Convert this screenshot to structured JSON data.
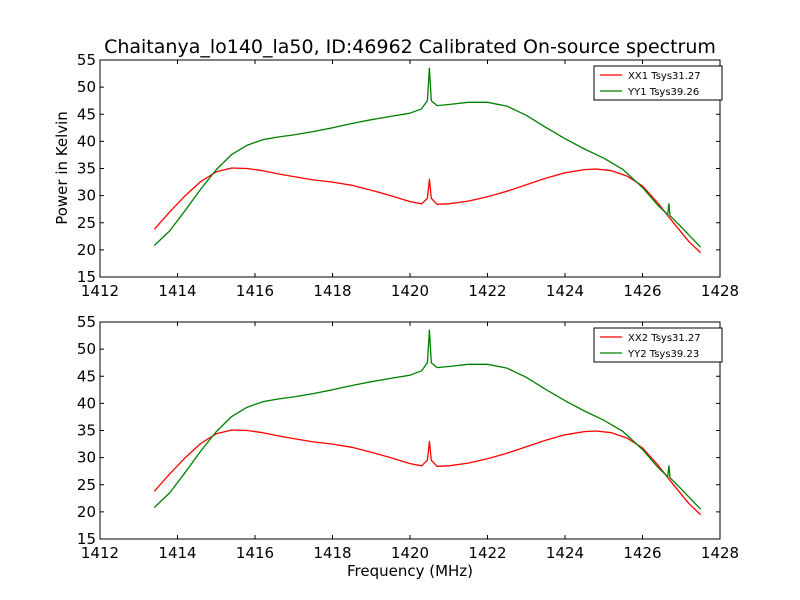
{
  "title": "Chaitanya_lo140_la50, ID:46962 Calibrated On-source spectrum",
  "xlabel": "Frequency (MHz)",
  "ylabel": "Power in Kelvin",
  "chart_data": [
    {
      "type": "line",
      "title": "Chaitanya_lo140_la50, ID:46962 Calibrated On-source spectrum",
      "xlabel": "",
      "ylabel": "Power in Kelvin",
      "xlim": [
        1412,
        1428
      ],
      "ylim": [
        15,
        55
      ],
      "xticks": [
        "1412",
        "1414",
        "1416",
        "1418",
        "1420",
        "1422",
        "1424",
        "1426",
        "1428"
      ],
      "yticks": [
        "15",
        "20",
        "25",
        "30",
        "35",
        "40",
        "45",
        "50",
        "55"
      ],
      "grid": false,
      "legend_position": "top-right",
      "series": [
        {
          "name": "XX1 Tsys31.27",
          "color": "#ff0000",
          "x": [
            1413.4,
            1413.8,
            1414.2,
            1414.6,
            1415.0,
            1415.4,
            1415.8,
            1416.2,
            1416.6,
            1417.0,
            1417.5,
            1418.0,
            1418.5,
            1419.0,
            1419.5,
            1420.0,
            1420.3,
            1420.45,
            1420.5,
            1420.55,
            1420.7,
            1421.0,
            1421.5,
            1422.0,
            1422.5,
            1423.0,
            1423.5,
            1424.0,
            1424.5,
            1424.8,
            1425.2,
            1425.6,
            1426.0,
            1426.4,
            1426.8,
            1427.2,
            1427.5
          ],
          "y": [
            23.8,
            27.0,
            30.0,
            32.6,
            34.4,
            35.1,
            35.0,
            34.6,
            34.0,
            33.5,
            32.9,
            32.5,
            31.9,
            31.0,
            30.0,
            28.9,
            28.5,
            29.5,
            33.0,
            29.5,
            28.4,
            28.5,
            29.0,
            29.8,
            30.8,
            32.0,
            33.2,
            34.2,
            34.8,
            34.9,
            34.6,
            33.6,
            31.8,
            28.6,
            25.0,
            21.5,
            19.5
          ]
        },
        {
          "name": "YY1 Tsys39.26",
          "color": "#008000",
          "x": [
            1413.4,
            1413.8,
            1414.2,
            1414.6,
            1415.0,
            1415.4,
            1415.8,
            1416.2,
            1416.6,
            1417.0,
            1417.5,
            1418.0,
            1418.5,
            1419.0,
            1419.5,
            1420.0,
            1420.3,
            1420.45,
            1420.5,
            1420.55,
            1420.7,
            1421.0,
            1421.5,
            1422.0,
            1422.5,
            1423.0,
            1423.5,
            1424.0,
            1424.5,
            1425.0,
            1425.5,
            1426.0,
            1426.4,
            1426.65,
            1426.68,
            1426.71,
            1427.0,
            1427.5
          ],
          "y": [
            20.8,
            23.5,
            27.3,
            31.2,
            34.8,
            37.6,
            39.3,
            40.3,
            40.8,
            41.2,
            41.8,
            42.5,
            43.3,
            44.0,
            44.6,
            45.2,
            46.0,
            47.5,
            53.5,
            47.5,
            46.6,
            46.8,
            47.2,
            47.2,
            46.5,
            44.8,
            42.6,
            40.5,
            38.6,
            36.9,
            34.8,
            31.5,
            28.2,
            26.5,
            28.5,
            26.3,
            24.2,
            20.5
          ]
        }
      ]
    },
    {
      "type": "line",
      "title": "",
      "xlabel": "Frequency (MHz)",
      "ylabel": "",
      "xlim": [
        1412,
        1428
      ],
      "ylim": [
        15,
        55
      ],
      "xticks": [
        "1412",
        "1414",
        "1416",
        "1418",
        "1420",
        "1422",
        "1424",
        "1426",
        "1428"
      ],
      "yticks": [
        "15",
        "20",
        "25",
        "30",
        "35",
        "40",
        "45",
        "50",
        "55"
      ],
      "grid": false,
      "legend_position": "top-right",
      "series": [
        {
          "name": "XX2 Tsys31.27",
          "color": "#ff0000",
          "x": [
            1413.4,
            1413.8,
            1414.2,
            1414.6,
            1415.0,
            1415.4,
            1415.8,
            1416.2,
            1416.6,
            1417.0,
            1417.5,
            1418.0,
            1418.5,
            1419.0,
            1419.5,
            1420.0,
            1420.3,
            1420.45,
            1420.5,
            1420.55,
            1420.7,
            1421.0,
            1421.5,
            1422.0,
            1422.5,
            1423.0,
            1423.5,
            1424.0,
            1424.5,
            1424.8,
            1425.2,
            1425.6,
            1426.0,
            1426.4,
            1426.8,
            1427.2,
            1427.5
          ],
          "y": [
            23.8,
            27.0,
            30.0,
            32.6,
            34.4,
            35.1,
            35.0,
            34.6,
            34.0,
            33.5,
            32.9,
            32.5,
            31.9,
            31.0,
            30.0,
            28.9,
            28.5,
            29.5,
            33.0,
            29.5,
            28.4,
            28.5,
            29.0,
            29.8,
            30.8,
            32.0,
            33.2,
            34.2,
            34.8,
            34.9,
            34.6,
            33.6,
            31.8,
            28.6,
            25.0,
            21.5,
            19.5
          ]
        },
        {
          "name": "YY2 Tsys39.23",
          "color": "#008000",
          "x": [
            1413.4,
            1413.8,
            1414.2,
            1414.6,
            1415.0,
            1415.4,
            1415.8,
            1416.2,
            1416.6,
            1417.0,
            1417.5,
            1418.0,
            1418.5,
            1419.0,
            1419.5,
            1420.0,
            1420.3,
            1420.45,
            1420.5,
            1420.55,
            1420.7,
            1421.0,
            1421.5,
            1422.0,
            1422.5,
            1423.0,
            1423.5,
            1424.0,
            1424.5,
            1425.0,
            1425.5,
            1426.0,
            1426.4,
            1426.65,
            1426.68,
            1426.71,
            1427.0,
            1427.5
          ],
          "y": [
            20.8,
            23.5,
            27.3,
            31.2,
            34.8,
            37.6,
            39.3,
            40.3,
            40.8,
            41.2,
            41.8,
            42.5,
            43.3,
            44.0,
            44.6,
            45.2,
            46.0,
            47.5,
            53.5,
            47.5,
            46.6,
            46.8,
            47.2,
            47.2,
            46.5,
            44.8,
            42.6,
            40.5,
            38.6,
            36.9,
            34.8,
            31.5,
            28.2,
            26.5,
            28.5,
            26.3,
            24.2,
            20.5
          ]
        }
      ]
    }
  ]
}
